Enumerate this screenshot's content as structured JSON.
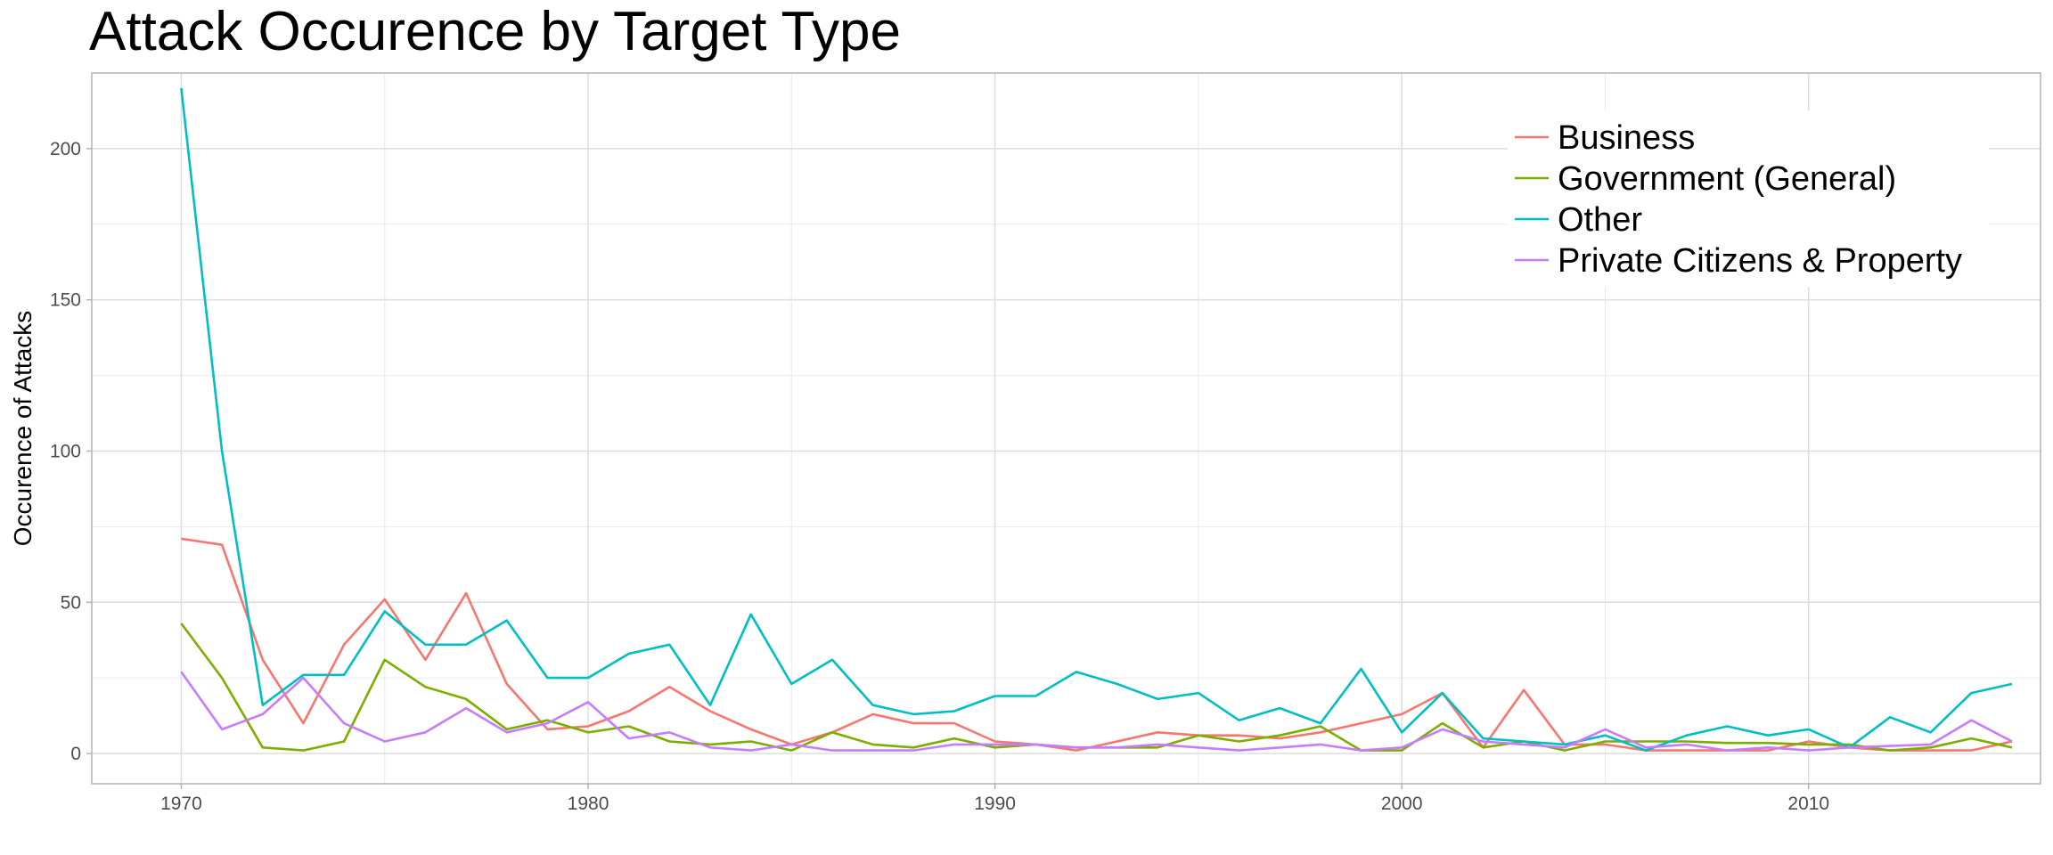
{
  "chart_data": {
    "type": "line",
    "title": "Attack Occurence by Target Type",
    "xlabel": "",
    "ylabel": "Occurence of Attacks",
    "xlim": [
      1967.8,
      2015.7
    ],
    "ylim": [
      -10,
      225
    ],
    "x_ticks": [
      1970,
      1980,
      1990,
      2000,
      2010
    ],
    "y_ticks": [
      0,
      50,
      100,
      150,
      200
    ],
    "grid": true,
    "legend_position": "top-right",
    "x": [
      1970,
      1971,
      1972,
      1973,
      1974,
      1975,
      1976,
      1977,
      1978,
      1979,
      1980,
      1981,
      1982,
      1983,
      1984,
      1985,
      1986,
      1987,
      1988,
      1989,
      1990,
      1991,
      1992,
      1993,
      1994,
      1995,
      1996,
      1997,
      1998,
      1999,
      2000,
      2001,
      2002,
      2003,
      2004,
      2005,
      2006,
      2007,
      2008,
      2009,
      2010,
      2011,
      2012,
      2013,
      2014,
      2015
    ],
    "series": [
      {
        "name": "Business",
        "color": "#F8766D",
        "values": [
          71,
          69,
          31,
          10,
          36,
          51,
          31,
          53,
          23,
          8,
          9,
          14,
          22,
          14,
          8,
          3,
          7,
          13,
          10,
          10,
          4,
          3,
          1,
          4,
          7,
          6,
          6,
          5,
          7,
          10,
          13,
          20,
          2,
          21,
          3,
          3,
          1,
          1,
          1,
          1,
          4,
          2,
          1,
          1,
          1,
          4
        ]
      },
      {
        "name": "Government (General)",
        "color": "#7CAE00",
        "values": [
          43,
          25,
          2,
          1,
          4,
          31,
          22,
          18,
          8,
          11,
          7,
          9,
          4,
          3,
          4,
          1,
          7,
          3,
          2,
          5,
          2,
          3,
          2,
          2,
          2,
          6,
          4,
          6,
          9,
          1,
          1,
          10,
          2,
          4,
          1,
          4,
          4,
          4,
          3.5,
          3.5,
          3,
          3,
          1,
          2,
          5,
          2
        ]
      },
      {
        "name": "Other",
        "color": "#00BFC4",
        "values": [
          220,
          100,
          16,
          26,
          26,
          47,
          36,
          36,
          44,
          25,
          25,
          33,
          36,
          16,
          46,
          23,
          31,
          16,
          13,
          14,
          19,
          19,
          27,
          23,
          18,
          20,
          11,
          15,
          10,
          28,
          7,
          20,
          5,
          4,
          3,
          6,
          1,
          6,
          9,
          6,
          8,
          2,
          12,
          7,
          20,
          23
        ]
      },
      {
        "name": "Private Citizens & Property",
        "color": "#C77CFF",
        "values": [
          27,
          8,
          13,
          25,
          10,
          4,
          7,
          15,
          7,
          10,
          17,
          5,
          7,
          2,
          1,
          3,
          1,
          1,
          1,
          3,
          3,
          3,
          2,
          2,
          3,
          2,
          1,
          2,
          3,
          1,
          2,
          8,
          4,
          3,
          2,
          8,
          2,
          3,
          1,
          2,
          1,
          2,
          2.5,
          3,
          11,
          4
        ]
      }
    ]
  }
}
